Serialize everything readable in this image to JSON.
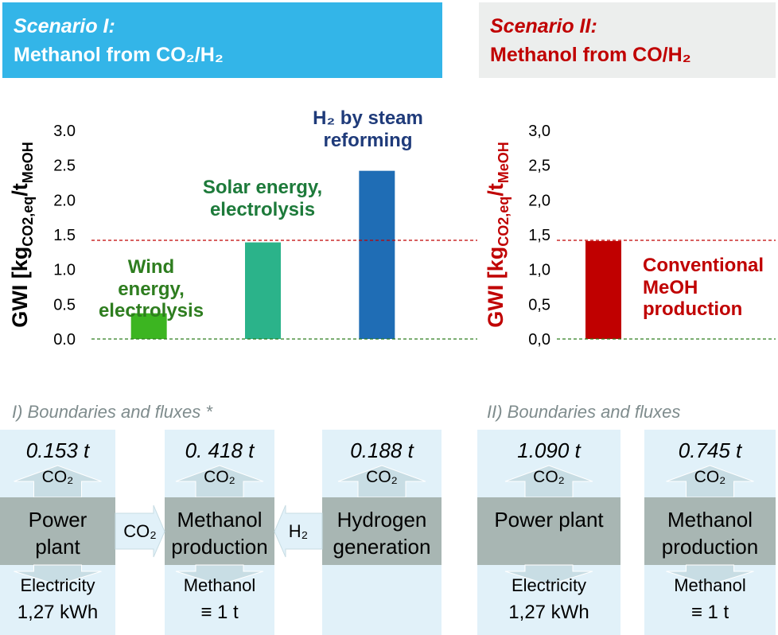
{
  "chart_data": [
    {
      "type": "bar",
      "ylabel": {
        "main": "GWI [kg",
        "sub1": "CO2,eq",
        "mid": "/t",
        "sub2": "MeOH"
      },
      "ylabel_color": "#000000",
      "categories": [
        "Wind energy, electrolysis",
        "Solar energy, electrolysis",
        "H₂ by steam reforming"
      ],
      "values": [
        0.37,
        1.39,
        2.42
      ],
      "colors": [
        "#3cb521",
        "#2bb38a",
        "#1f6db5"
      ],
      "label_colors": [
        "#2e7d1f",
        "#1d7a3a",
        "#1f3b7a"
      ],
      "ylim": [
        0,
        3
      ],
      "yticks": [
        {
          "value": 0,
          "label": "0.0"
        },
        {
          "value": 0.5,
          "label": "0.5"
        },
        {
          "value": 1,
          "label": "1.0"
        },
        {
          "value": 1.5,
          "label": "1.5"
        },
        {
          "value": 2,
          "label": "2.0"
        },
        {
          "value": 2.5,
          "label": "2.5"
        },
        {
          "value": 3,
          "label": "3.0"
        }
      ],
      "hlines": [
        {
          "value": 1.42,
          "color": "#c00000"
        },
        {
          "value": 0,
          "color": "#2e7d1f"
        }
      ]
    },
    {
      "type": "bar",
      "ylabel": {
        "main": "GWI [kg",
        "sub1": "CO2,eq",
        "mid": "/t",
        "sub2": "MeOH"
      },
      "ylabel_color": "#c00000",
      "categories": [
        "Conventional MeOH production"
      ],
      "values": [
        1.41
      ],
      "colors": [
        "#c00000"
      ],
      "label_colors": [
        "#c00000"
      ],
      "ylim": [
        0,
        3
      ],
      "yticks": [
        {
          "value": 0,
          "label": "0,0"
        },
        {
          "value": 0.5,
          "label": "0,5"
        },
        {
          "value": 1,
          "label": "1,0"
        },
        {
          "value": 1.5,
          "label": "1,5"
        },
        {
          "value": 2,
          "label": "2,0"
        },
        {
          "value": 2.5,
          "label": "2,5"
        },
        {
          "value": 3,
          "label": "3,0"
        }
      ],
      "hlines": [
        {
          "value": 1.42,
          "color": "#c00000"
        },
        {
          "value": 0,
          "color": "#2e7d1f"
        }
      ]
    }
  ],
  "scenarios": [
    {
      "title": "Scenario I:",
      "subtitle": "Methanol from CO₂/H₂"
    },
    {
      "title": "Scenario II:",
      "subtitle": "Methanol from CO/H₂"
    }
  ],
  "diagrams": [
    {
      "title": "I) Boundaries and fluxes *",
      "units": [
        {
          "emission": "0.153 t",
          "gas": "CO₂",
          "label": "Power plant",
          "output": "Electricity",
          "amount": "1,27 kWh"
        },
        {
          "emission": "0. 418 t",
          "gas": "CO₂",
          "label": "Methanol production",
          "output": "Methanol",
          "amount": "≡ 1 t"
        },
        {
          "emission": "0.188 t",
          "gas": "CO₂",
          "label": "Hydrogen generation"
        }
      ],
      "flows": [
        "CO₂",
        "H₂"
      ]
    },
    {
      "title": "II) Boundaries and fluxes",
      "units": [
        {
          "emission": "1.090 t",
          "gas": "CO₂",
          "label": "Power plant",
          "output": "Electricity",
          "amount": "1,27 kWh"
        },
        {
          "emission": "0.745 t",
          "gas": "CO₂",
          "label": "Methanol production",
          "output": "Methanol",
          "amount": "≡ 1 t"
        }
      ],
      "flows": []
    }
  ]
}
